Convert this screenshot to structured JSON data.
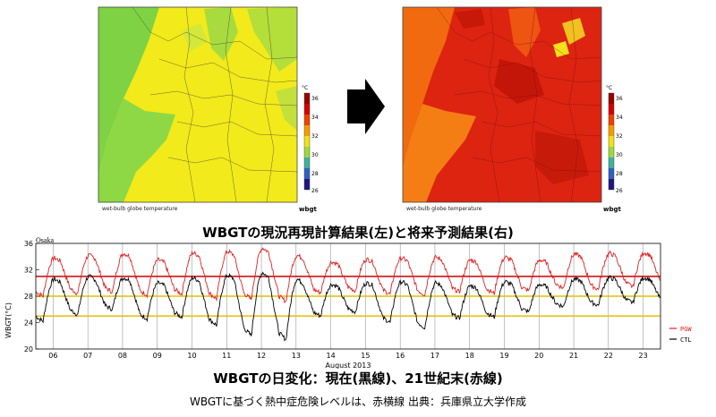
{
  "maps": {
    "left": {
      "caption": "wet-bulb globe temperature",
      "name": "wbgt",
      "unit": "°C",
      "scale": [
        "36",
        "34",
        "32",
        "30",
        "28",
        "26"
      ]
    },
    "right": {
      "caption": "wet-bulb globe temperature",
      "name": "wbgt",
      "unit": "°C",
      "scale": [
        "36",
        "34",
        "32",
        "30",
        "28",
        "26"
      ]
    }
  },
  "titles": {
    "chart": "WBGTの現況再現計算結果(左)と将来予測結果(右)",
    "diurnal": "WBGTの日変化：現在(黒線)、21世紀末(赤線)",
    "source": "WBGTに基づく熱中症危険レベルは、赤横線 出典：兵庫県立大学作成"
  },
  "chart_data": {
    "type": "line",
    "title": "Osaka",
    "xlabel": "August 2013",
    "ylabel": "WBGT(°C)",
    "xlim": [
      5.5,
      23.5
    ],
    "ylim": [
      20,
      36
    ],
    "yticks": [
      20,
      24,
      28,
      32,
      36
    ],
    "x_ticks": [
      "06",
      "07",
      "08",
      "09",
      "10",
      "11",
      "12",
      "13",
      "14",
      "15",
      "16",
      "17",
      "18",
      "19",
      "20",
      "21",
      "22",
      "23"
    ],
    "daily_max_pgw": [
      33.8,
      34.2,
      34.5,
      33.5,
      34.6,
      34.8,
      35.3,
      34.2,
      33.2,
      33.6,
      33.8,
      33.9,
      33.5,
      33.9,
      33.5,
      34.4,
      34.5,
      34.6
    ],
    "daily_min_pgw": [
      28.0,
      28.4,
      28.6,
      28.2,
      28.3,
      27.6,
      27.5,
      27.2,
      28.5,
      28.8,
      28.3,
      28.2,
      28.6,
      28.4,
      28.8,
      29.2,
      29.0,
      29.4
    ],
    "daily_max_ctl": [
      30.6,
      31.0,
      30.8,
      30.0,
      30.8,
      31.2,
      31.6,
      30.6,
      29.8,
      30.0,
      30.2,
      30.0,
      29.6,
      30.2,
      29.8,
      30.6,
      30.8,
      30.8
    ],
    "daily_min_ctl": [
      24.2,
      25.2,
      26.0,
      24.6,
      24.8,
      23.6,
      22.0,
      21.4,
      25.0,
      25.6,
      24.0,
      23.2,
      24.6,
      24.8,
      25.6,
      26.4,
      26.6,
      27.0
    ],
    "threshold_lines": [
      31,
      28,
      25
    ],
    "series": [
      {
        "name": "PGW",
        "color": "#e02020"
      },
      {
        "name": "CTL",
        "color": "#000000"
      }
    ]
  }
}
